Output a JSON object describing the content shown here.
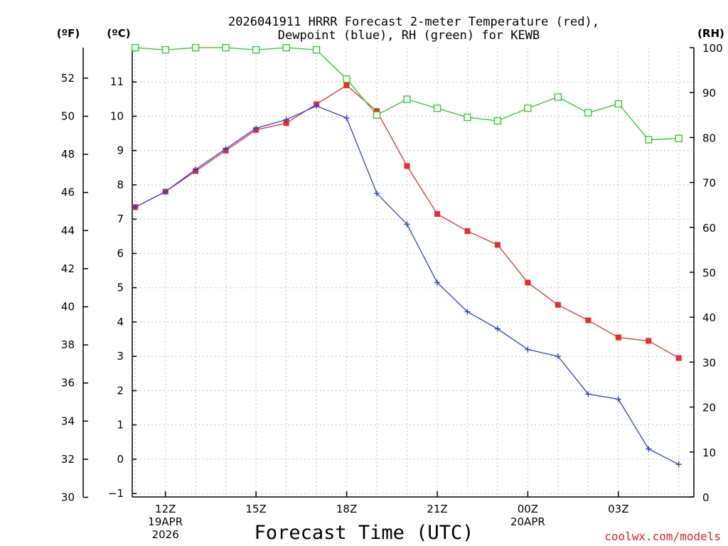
{
  "chart_data": {
    "type": "line",
    "title_lines": [
      "2026041911 HRRR Forecast 2-meter Temperature (red),",
      "Dewpoint (blue), RH (green) for KEWB"
    ],
    "xlabel": "Forecast Time (UTC)",
    "credit": "coolwx.com/models",
    "units": {
      "left_f": "(ºF)",
      "left_c": "(ºC)",
      "right": "(RH)"
    },
    "x_hours": [
      11,
      12,
      13,
      14,
      15,
      16,
      17,
      18,
      19,
      20,
      21,
      22,
      23,
      24,
      25,
      26,
      27,
      28,
      29
    ],
    "xlim": [
      10.9,
      29.5
    ],
    "x_ticks": [
      {
        "hour": 12,
        "label": "12Z",
        "sub": [
          "19APR",
          "2026"
        ]
      },
      {
        "hour": 15,
        "label": "15Z",
        "sub": []
      },
      {
        "hour": 18,
        "label": "18Z",
        "sub": []
      },
      {
        "hour": 21,
        "label": "21Z",
        "sub": []
      },
      {
        "hour": 24,
        "label": "00Z",
        "sub": [
          "20APR"
        ]
      },
      {
        "hour": 27,
        "label": "03Z",
        "sub": []
      }
    ],
    "ylim_c": [
      -1.1,
      12.0
    ],
    "y_ticks_c": [
      -1,
      0,
      1,
      2,
      3,
      4,
      5,
      6,
      7,
      8,
      9,
      10,
      11
    ],
    "y_ticks_f": [
      30,
      32,
      34,
      36,
      38,
      40,
      42,
      44,
      46,
      48,
      50,
      52
    ],
    "ylim_rh": [
      0,
      100
    ],
    "y_ticks_rh": [
      0,
      10,
      20,
      30,
      40,
      50,
      60,
      70,
      80,
      90,
      100
    ],
    "series": [
      {
        "name": "Temperature",
        "axis": "c",
        "color": "#ee2a2a",
        "marker": "square-filled",
        "values": [
          7.35,
          7.8,
          8.4,
          9.0,
          9.6,
          9.8,
          10.35,
          10.9,
          10.15,
          8.55,
          7.15,
          6.65,
          6.25,
          5.15,
          4.5,
          4.05,
          3.55,
          3.45,
          2.95
        ]
      },
      {
        "name": "Dewpoint",
        "axis": "c",
        "color": "#2a3cee",
        "marker": "plus",
        "values": [
          7.35,
          7.8,
          8.45,
          9.05,
          9.65,
          9.9,
          10.3,
          9.95,
          7.75,
          6.85,
          5.15,
          4.3,
          3.8,
          3.2,
          3.0,
          1.9,
          1.75,
          0.3,
          -0.15
        ]
      },
      {
        "name": "RH",
        "axis": "rh",
        "color": "#22cc22",
        "marker": "square-open",
        "values": [
          100,
          99.5,
          100,
          100,
          99.5,
          100,
          99.5,
          93,
          85,
          88.5,
          86.5,
          84.5,
          83.7,
          86.5,
          89,
          85.5,
          87.5,
          79.5,
          79.8
        ]
      }
    ]
  }
}
